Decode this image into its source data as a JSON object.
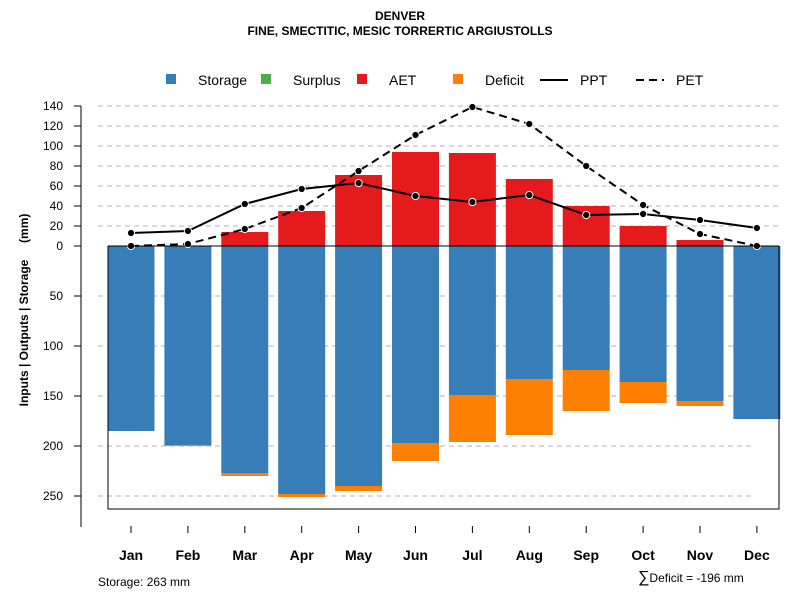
{
  "chart_data": {
    "type": "bar",
    "title": "DENVER",
    "subtitle": "FINE, SMECTITIC, MESIC TORRERTIC ARGIUSTOLLS",
    "ylabel": "Inputs | Outputs | Storage     (mm)",
    "categories": [
      "Jan",
      "Feb",
      "Mar",
      "Apr",
      "May",
      "Jun",
      "Jul",
      "Aug",
      "Sep",
      "Oct",
      "Nov",
      "Dec"
    ],
    "upper_axis": {
      "ylim": [
        0,
        140
      ],
      "ticks": [
        0,
        20,
        40,
        60,
        80,
        100,
        120,
        140
      ]
    },
    "lower_axis": {
      "ylim": [
        0,
        263
      ],
      "ticks": [
        50,
        100,
        150,
        200,
        250
      ]
    },
    "series": [
      {
        "name": "Storage",
        "color": "#377EB8",
        "values": [
          185,
          199,
          227,
          248,
          240,
          197,
          149,
          133,
          124,
          136,
          155,
          173
        ]
      },
      {
        "name": "Surplus",
        "color": "#4DAF4A",
        "values": [
          0,
          0,
          0,
          0,
          0,
          0,
          0,
          0,
          0,
          0,
          0,
          0
        ]
      },
      {
        "name": "AET",
        "color": "#E41A1C",
        "values": [
          0,
          0,
          14,
          35,
          71,
          94,
          93,
          67,
          40,
          20,
          6,
          0
        ]
      },
      {
        "name": "Deficit",
        "color": "#FF7F00",
        "values": [
          0,
          1,
          3,
          3,
          5,
          18,
          47,
          56,
          41,
          21,
          5,
          0
        ]
      },
      {
        "name": "PPT",
        "color": "#000000",
        "style": "solid",
        "values": [
          13,
          15,
          42,
          57,
          63,
          50,
          44,
          51,
          31,
          32,
          26,
          18
        ]
      },
      {
        "name": "PET",
        "color": "#000000",
        "style": "dashed",
        "values": [
          0,
          2,
          17,
          38,
          75,
          111,
          139,
          122,
          80,
          41,
          12,
          0
        ]
      }
    ],
    "legend": [
      "Storage",
      "Surplus",
      "AET",
      "Deficit",
      "PPT",
      "PET"
    ],
    "legend_position": "top",
    "grid": true
  },
  "footer": {
    "storage": "Storage: 263 mm",
    "sigma": "∑",
    "deficit": "Deficit = -196 mm"
  }
}
